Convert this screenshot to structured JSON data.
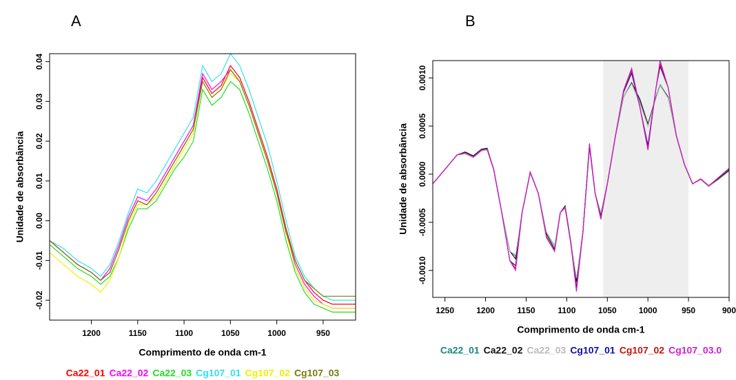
{
  "chart_data": [
    {
      "type": "line",
      "title": "A",
      "xlabel": "Comprimento de onda cm-1",
      "ylabel": "Unidade de absorbância",
      "x": [
        1245,
        1230,
        1215,
        1200,
        1190,
        1180,
        1170,
        1160,
        1150,
        1140,
        1130,
        1120,
        1110,
        1100,
        1090,
        1080,
        1070,
        1060,
        1050,
        1040,
        1030,
        1020,
        1010,
        1000,
        990,
        980,
        970,
        960,
        950,
        940,
        930,
        915
      ],
      "xlim": [
        1245,
        915
      ],
      "xticks": [
        1200,
        1150,
        1100,
        1050,
        1000,
        950
      ],
      "ylim": [
        -0.025,
        0.042
      ],
      "yticks": [
        -0.02,
        -0.01,
        {
          "value": 0,
          "label": "0.00"
        },
        0.01,
        0.02,
        0.03,
        0.04
      ],
      "series": [
        {
          "name": "Ca22_01",
          "color": "#ff0000",
          "values": [
            -0.005,
            -0.008,
            -0.011,
            -0.013,
            -0.015,
            -0.013,
            -0.007,
            0.0,
            0.005,
            0.004,
            0.007,
            0.011,
            0.015,
            0.019,
            0.023,
            0.036,
            0.032,
            0.034,
            0.039,
            0.036,
            0.03,
            0.023,
            0.016,
            0.008,
            -0.002,
            -0.01,
            -0.015,
            -0.018,
            -0.02,
            -0.021,
            -0.021,
            -0.021
          ]
        },
        {
          "name": "Ca22_02",
          "color": "#ff00ff",
          "values": [
            -0.005,
            -0.008,
            -0.011,
            -0.013,
            -0.015,
            -0.012,
            -0.006,
            0.001,
            0.006,
            0.005,
            0.008,
            0.012,
            0.016,
            0.02,
            0.024,
            0.037,
            0.033,
            0.035,
            0.038,
            0.035,
            0.029,
            0.022,
            0.015,
            0.007,
            -0.003,
            -0.011,
            -0.016,
            -0.019,
            -0.021,
            -0.022,
            -0.022,
            -0.022
          ]
        },
        {
          "name": "Ca22_03",
          "color": "#22dd22",
          "values": [
            -0.006,
            -0.009,
            -0.012,
            -0.014,
            -0.016,
            -0.014,
            -0.009,
            -0.002,
            0.003,
            0.003,
            0.005,
            0.009,
            0.013,
            0.016,
            0.02,
            0.033,
            0.029,
            0.031,
            0.035,
            0.033,
            0.027,
            0.02,
            0.013,
            0.005,
            -0.005,
            -0.013,
            -0.018,
            -0.021,
            -0.022,
            -0.023,
            -0.023,
            -0.023
          ]
        },
        {
          "name": "Cg107_01",
          "color": "#33e0ee",
          "values": [
            -0.005,
            -0.007,
            -0.01,
            -0.012,
            -0.014,
            -0.011,
            -0.005,
            0.002,
            0.008,
            0.007,
            0.01,
            0.014,
            0.018,
            0.022,
            0.026,
            0.039,
            0.035,
            0.037,
            0.042,
            0.039,
            0.033,
            0.026,
            0.019,
            0.01,
            0.0,
            -0.009,
            -0.014,
            -0.017,
            -0.019,
            -0.02,
            -0.02,
            -0.02
          ]
        },
        {
          "name": "Cg107_02",
          "color": "#f0f000",
          "values": [
            -0.008,
            -0.011,
            -0.014,
            -0.016,
            -0.018,
            -0.015,
            -0.009,
            -0.001,
            0.004,
            0.004,
            0.006,
            0.01,
            0.014,
            0.018,
            0.022,
            0.035,
            0.031,
            0.033,
            0.037,
            0.035,
            0.029,
            0.022,
            0.015,
            0.007,
            -0.003,
            -0.012,
            -0.017,
            -0.02,
            -0.021,
            -0.022,
            -0.022,
            -0.022
          ]
        },
        {
          "name": "Cg107_03",
          "color": "#7a7a10",
          "values": [
            -0.005,
            -0.008,
            -0.011,
            -0.013,
            -0.015,
            -0.013,
            -0.007,
            0.0,
            0.005,
            0.004,
            0.007,
            0.011,
            0.015,
            0.019,
            0.023,
            0.035,
            0.031,
            0.033,
            0.038,
            0.035,
            0.029,
            0.022,
            0.015,
            0.007,
            -0.003,
            -0.01,
            -0.015,
            -0.017,
            -0.019,
            -0.019,
            -0.019,
            -0.019
          ]
        }
      ]
    },
    {
      "type": "line",
      "title": "B",
      "xlabel": "Comprimento de onda cm-1",
      "ylabel": "Unidade de absorbância",
      "x": [
        1265,
        1255,
        1245,
        1235,
        1225,
        1215,
        1205,
        1198,
        1190,
        1180,
        1170,
        1163,
        1155,
        1145,
        1135,
        1125,
        1115,
        1108,
        1102,
        1095,
        1088,
        1080,
        1072,
        1065,
        1058,
        1050,
        1040,
        1030,
        1020,
        1010,
        1000,
        990,
        985,
        975,
        965,
        955,
        945,
        935,
        925,
        915,
        900
      ],
      "xlim": [
        1265,
        900
      ],
      "xticks": [
        1250,
        1200,
        1150,
        1100,
        1050,
        1000,
        950,
        900
      ],
      "ylim": [
        -0.00128,
        0.00118
      ],
      "yticks": [
        {
          "value": -0.001,
          "label": "-0.0010"
        },
        -0.0005,
        {
          "value": 0,
          "label": "0.0000"
        },
        0.0005,
        {
          "value": 0.001,
          "label": "0.0010"
        }
      ],
      "highlight": [
        1055,
        950
      ],
      "series": [
        {
          "name": "Ca22_01",
          "color": "#1a8a7a",
          "values": [
            -0.0001,
            0,
            0.0001,
            0.0002,
            0.00022,
            0.00018,
            0.00025,
            0.00026,
            5e-05,
            -0.0004,
            -0.0008,
            -0.00085,
            -0.0004,
            2e-05,
            -0.0002,
            -0.0006,
            -0.00075,
            -0.0004,
            -0.00035,
            -0.0007,
            -0.0011,
            -0.0006,
            0.0003,
            -0.0002,
            -0.0004,
            -0.0001,
            0.0004,
            0.0008,
            0.00095,
            0.00075,
            0.0005,
            0.0008,
            0.00093,
            0.0008,
            0.0004,
            0.0001,
            -0.0001,
            -5e-05,
            -0.00012,
            -5e-05,
            5e-05
          ]
        },
        {
          "name": "Ca22_02",
          "color": "#111111",
          "values": [
            -0.0001,
            0,
            0.0001,
            0.0002,
            0.00023,
            0.00019,
            0.00026,
            0.00027,
            5e-05,
            -0.0004,
            -0.0008,
            -0.00088,
            -0.0004,
            2e-05,
            -0.0002,
            -0.00062,
            -0.00078,
            -0.0004,
            -0.00033,
            -0.0007,
            -0.00112,
            -0.0006,
            0.00028,
            -0.0002,
            -0.00042,
            -0.0001,
            0.0004,
            0.0008,
            0.00095,
            0.00078,
            0.00052,
            0.0008,
            0.00092,
            0.0008,
            0.0004,
            0.0001,
            -0.0001,
            -5e-05,
            -0.00012,
            -6e-05,
            4e-05
          ]
        },
        {
          "name": "Ca22_03",
          "color": "#bbbbbb",
          "values": [
            -0.0001,
            0,
            0.0001,
            0.0002,
            0.00021,
            0.00017,
            0.00024,
            0.00025,
            4e-05,
            -0.0004,
            -0.0008,
            -0.00084,
            -0.0004,
            1e-05,
            -0.0002,
            -0.0006,
            -0.00074,
            -0.0004,
            -0.00036,
            -0.0007,
            -0.00108,
            -0.0006,
            0.00029,
            -0.0002,
            -0.0004,
            -0.0001,
            0.0004,
            0.0008,
            0.00094,
            0.00074,
            0.0005,
            0.00079,
            0.00092,
            0.00079,
            0.0004,
            0.0001,
            -0.0001,
            -6e-05,
            -0.00013,
            -7e-05,
            3e-05
          ]
        },
        {
          "name": "Cg107_01",
          "color": "#1010aa",
          "values": [
            -0.0001,
            0,
            0.0001,
            0.0002,
            0.00022,
            0.00018,
            0.00025,
            0.00026,
            5e-05,
            -0.0004,
            -0.0009,
            -0.00095,
            -0.0004,
            2e-05,
            -0.0002,
            -0.00065,
            -0.0008,
            -0.0004,
            -0.00034,
            -0.00072,
            -0.00118,
            -0.0006,
            0.0003,
            -0.0002,
            -0.00045,
            -0.0001,
            0.0004,
            0.00085,
            0.00105,
            0.0007,
            0.0003,
            0.0009,
            0.00112,
            0.0009,
            0.0004,
            0.0001,
            -0.0001,
            -5e-05,
            -0.00012,
            -5e-05,
            6e-05
          ]
        },
        {
          "name": "Cg107_02",
          "color": "#cc1111",
          "values": [
            -0.0001,
            0,
            0.0001,
            0.0002,
            0.00022,
            0.00018,
            0.00025,
            0.00026,
            5e-05,
            -0.0004,
            -0.0009,
            -0.00098,
            -0.0004,
            2e-05,
            -0.0002,
            -0.00065,
            -0.0008,
            -0.0004,
            -0.00034,
            -0.00072,
            -0.0012,
            -0.0006,
            0.00031,
            -0.0002,
            -0.00046,
            -0.0001,
            0.0004,
            0.00086,
            0.00108,
            0.0007,
            0.00027,
            0.0009,
            0.00115,
            0.0009,
            0.0004,
            0.0001,
            -0.0001,
            -5e-05,
            -0.00012,
            -5e-05,
            6e-05
          ]
        },
        {
          "name": "Cg107_03.0",
          "color": "#cc22cc",
          "values": [
            -0.0001,
            0,
            0.0001,
            0.0002,
            0.00022,
            0.00018,
            0.00025,
            0.00026,
            5e-05,
            -0.0004,
            -0.0009,
            -0.001,
            -0.0004,
            2e-05,
            -0.0002,
            -0.00066,
            -0.0008,
            -0.0004,
            -0.00034,
            -0.00072,
            -0.00122,
            -0.0006,
            0.00032,
            -0.0002,
            -0.00047,
            -0.0001,
            0.0004,
            0.00087,
            0.0011,
            0.0007,
            0.00025,
            0.0009,
            0.00118,
            0.0009,
            0.0004,
            0.0001,
            -0.0001,
            -5e-05,
            -0.00012,
            -5e-05,
            6e-05
          ]
        }
      ]
    }
  ]
}
